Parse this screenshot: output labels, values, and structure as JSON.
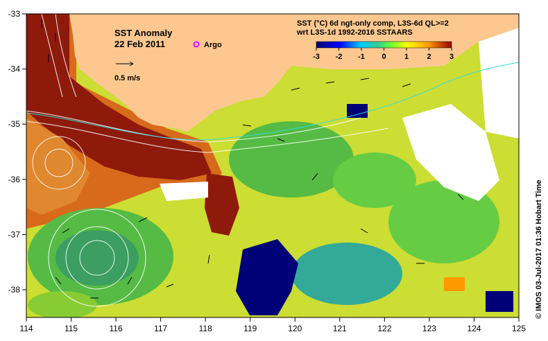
{
  "map": {
    "title": "SST Anomaly",
    "date": "22 Feb 2011",
    "argo_label": "Argo",
    "argo_color": "#ff00ff",
    "scale_label": "0.5 m/s",
    "header_line1": "SST (°C) 6d ngt-only comp, L3S-6d QL>=2",
    "header_line2": "wrt L3S-1d 1992-2016 SSTAARS",
    "colorbar_ticks": [
      "-3",
      "-2",
      "-1",
      "0",
      "1",
      "2",
      "3"
    ],
    "credit": "© IMOS 03-Jul-2017 01:36 Hobart Time",
    "lon_ticks": [
      "114",
      "115",
      "116",
      "117",
      "118",
      "119",
      "120",
      "121",
      "122",
      "123",
      "124",
      "125"
    ],
    "lat_ticks": [
      "-33",
      "-34",
      "-35",
      "-36",
      "-37",
      "-38"
    ],
    "land_color": "#fcc890"
  }
}
